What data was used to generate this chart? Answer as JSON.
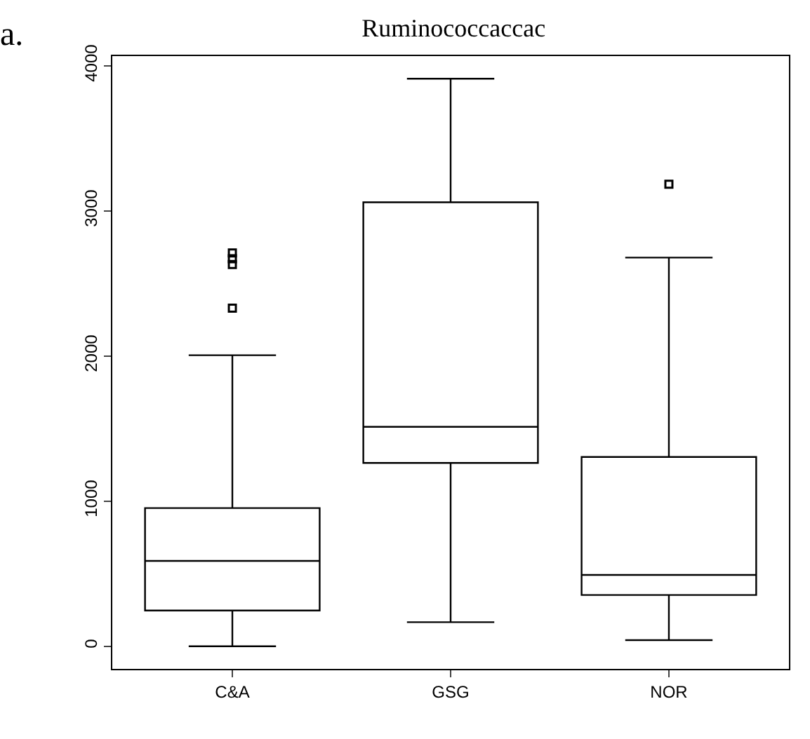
{
  "chart_data": {
    "type": "box",
    "title": "Ruminococcaccac",
    "categories": [
      "C&A",
      "GSG",
      "NOR"
    ],
    "boxes": [
      {
        "low": 0,
        "q1": 246,
        "median": 588,
        "q3": 952,
        "high": 2005,
        "outliers": [
          2330,
          2630,
          2670,
          2710
        ]
      },
      {
        "low": 166,
        "q1": 1263,
        "median": 1512,
        "q3": 3059,
        "high": 3910
      },
      {
        "low": 42,
        "q1": 353,
        "median": 491,
        "q3": 1304,
        "high": 2678,
        "outliers": [
          3183
        ]
      }
    ],
    "color": "#000000",
    "ylim": [
      -156,
      4066
    ],
    "yticks": [
      0,
      1000,
      2000,
      3000,
      4000
    ],
    "marker": "square",
    "annotations": [
      "a."
    ]
  }
}
